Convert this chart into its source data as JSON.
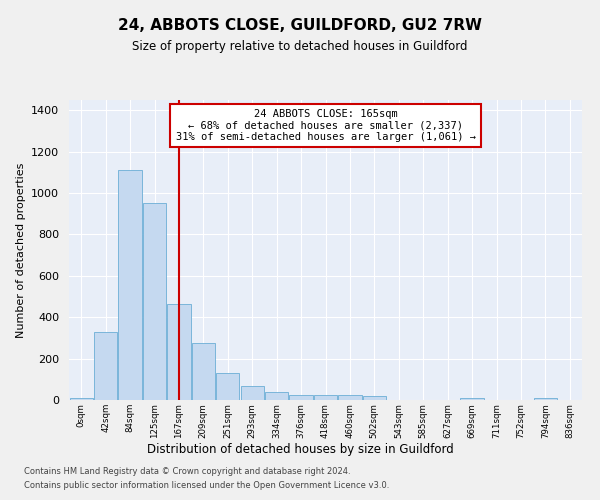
{
  "title": "24, ABBOTS CLOSE, GUILDFORD, GU2 7RW",
  "subtitle": "Size of property relative to detached houses in Guildford",
  "xlabel": "Distribution of detached houses by size in Guildford",
  "ylabel": "Number of detached properties",
  "bin_labels": [
    "0sqm",
    "42sqm",
    "84sqm",
    "125sqm",
    "167sqm",
    "209sqm",
    "251sqm",
    "293sqm",
    "334sqm",
    "376sqm",
    "418sqm",
    "460sqm",
    "502sqm",
    "543sqm",
    "585sqm",
    "627sqm",
    "669sqm",
    "711sqm",
    "752sqm",
    "794sqm",
    "836sqm"
  ],
  "bar_heights": [
    10,
    330,
    1110,
    950,
    465,
    275,
    130,
    70,
    40,
    25,
    25,
    25,
    20,
    0,
    0,
    0,
    10,
    0,
    0,
    10,
    0
  ],
  "bar_color": "#c5d9f0",
  "bar_edge_color": "#6baed6",
  "background_color": "#e8eef8",
  "grid_color": "#ffffff",
  "marker_index": 4,
  "marker_label": "24 ABBOTS CLOSE: 165sqm",
  "annotation_line1": "← 68% of detached houses are smaller (2,337)",
  "annotation_line2": "31% of semi-detached houses are larger (1,061) →",
  "annotation_box_color": "#ffffff",
  "annotation_box_edge_color": "#cc0000",
  "vline_color": "#cc0000",
  "ylim": [
    0,
    1450
  ],
  "yticks": [
    0,
    200,
    400,
    600,
    800,
    1000,
    1200,
    1400
  ],
  "footer_line1": "Contains HM Land Registry data © Crown copyright and database right 2024.",
  "footer_line2": "Contains public sector information licensed under the Open Government Licence v3.0.",
  "fig_bg": "#f0f0f0"
}
